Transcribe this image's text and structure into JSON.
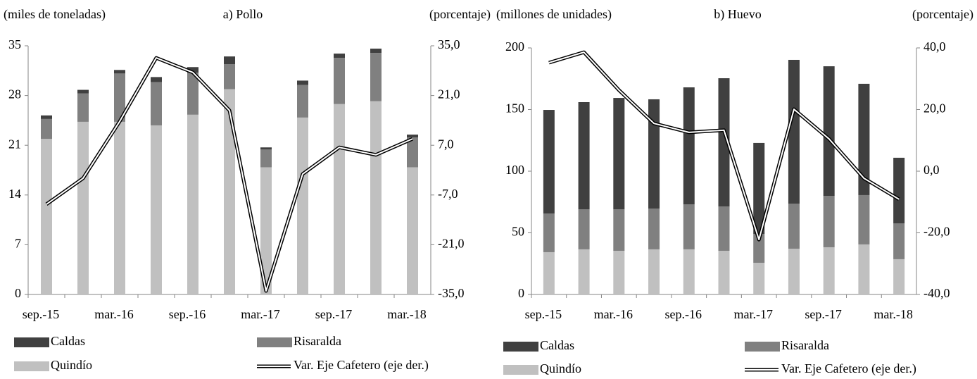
{
  "chart_data": [
    {
      "type": "bar",
      "stacked": true,
      "title": "a) Pollo",
      "y_label": "(miles de toneladas)",
      "y2_label": "(porcentaje)",
      "categories": [
        "sep.-15",
        null,
        "mar.-16",
        null,
        "sep.-16",
        null,
        "mar.-17",
        null,
        "sep.-17",
        null,
        "mar.-18"
      ],
      "series": [
        {
          "name": "Caldas",
          "color": "#404040",
          "values": [
            0.5,
            0.5,
            0.5,
            0.7,
            0.8,
            1.1,
            0.3,
            0.6,
            0.6,
            0.6,
            0.4
          ]
        },
        {
          "name": "Risaralda",
          "color": "#808080",
          "values": [
            2.8,
            4.0,
            6.8,
            6.1,
            5.9,
            3.5,
            2.5,
            4.6,
            6.5,
            6.8,
            4.2
          ]
        },
        {
          "name": "Quindío",
          "color": "#c0c0c0",
          "values": [
            21.9,
            24.3,
            24.3,
            23.8,
            25.3,
            28.9,
            17.9,
            24.9,
            26.8,
            27.2,
            17.9
          ]
        },
        {
          "name": "Var. Eje Cafetero (eje der.)",
          "type": "line",
          "axis": "y2",
          "color": "#000000",
          "values": [
            -9.6,
            -2.3,
            13.7,
            31.6,
            27.5,
            16.8,
            -34.0,
            -1.1,
            6.4,
            4.3,
            8.8
          ]
        }
      ],
      "ylim": [
        0,
        35
      ],
      "yticks": [
        0,
        7,
        14,
        21,
        28,
        35
      ],
      "y2lim": [
        -35,
        35
      ],
      "y2ticks": [
        {
          "value": -35,
          "label": "-35,0"
        },
        {
          "value": -21,
          "label": "-21,0"
        },
        {
          "value": -7,
          "label": "-7,0"
        },
        {
          "value": 7,
          "label": "7,0"
        },
        {
          "value": 21,
          "label": "21,0"
        },
        {
          "value": 35,
          "label": "35,0"
        }
      ]
    },
    {
      "type": "bar",
      "stacked": true,
      "title": "b) Huevo",
      "y_label": "(millones de unidades)",
      "y2_label": "(porcentaje)",
      "categories": [
        "sep.-15",
        null,
        "mar.-16",
        null,
        "sep.-16",
        null,
        "mar.-17",
        null,
        "sep.-17",
        null,
        "mar.-18"
      ],
      "series": [
        {
          "name": "Caldas",
          "color": "#404040",
          "values": [
            84.0,
            87.0,
            90.4,
            88.6,
            94.9,
            104.0,
            73.8,
            116.6,
            105.1,
            90.3,
            53.2
          ]
        },
        {
          "name": "Risaralda",
          "color": "#808080",
          "values": [
            31.4,
            32.4,
            33.6,
            33.1,
            36.5,
            36.0,
            23.4,
            36.6,
            41.7,
            40.0,
            29.1
          ]
        },
        {
          "name": "Quindío",
          "color": "#c0c0c0",
          "values": [
            34.3,
            36.6,
            35.4,
            36.6,
            36.6,
            35.4,
            25.7,
            37.1,
            38.3,
            40.6,
            28.6
          ]
        },
        {
          "name": "Var. Eje Cafetero (eje der.)",
          "type": "line",
          "axis": "y2",
          "color": "#000000",
          "values": [
            35.2,
            38.6,
            26.3,
            15.5,
            12.6,
            13.3,
            -22.2,
            20.1,
            10.5,
            -2.3,
            -9.1
          ]
        }
      ],
      "ylim": [
        0,
        200
      ],
      "yticks": [
        0,
        50,
        100,
        150,
        200
      ],
      "y2lim": [
        -40,
        40
      ],
      "y2ticks": [
        {
          "value": -40,
          "label": "-40,0"
        },
        {
          "value": -20,
          "label": "-20,0"
        },
        {
          "value": 0,
          "label": "0,0"
        },
        {
          "value": 20,
          "label": "20,0"
        },
        {
          "value": 40,
          "label": "40,0"
        }
      ]
    }
  ]
}
